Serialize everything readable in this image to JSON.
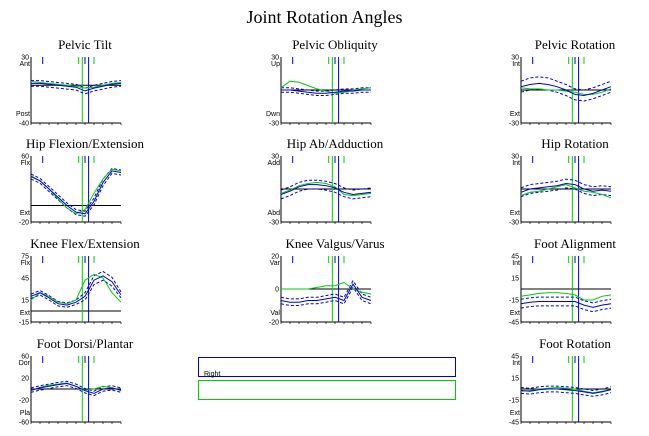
{
  "title": "Joint Rotation Angles",
  "legend": {
    "right_label": "Right",
    "right_color": "#0000cc",
    "left_color": "#00cc00"
  },
  "colors": {
    "right": "#0000cc",
    "left": "#00cc00",
    "axis": "#000000"
  },
  "chart_data": [
    {
      "type": "line",
      "title": "Pelvic Tilt",
      "y_ticks": [
        "30",
        "-40"
      ],
      "ylim": [
        -40,
        30
      ],
      "upper_label": "Ant",
      "lower_label": "Post",
      "zero_line": 0,
      "x": [
        0,
        10,
        20,
        30,
        40,
        50,
        60,
        70,
        80,
        90,
        100
      ],
      "right": [
        2,
        2,
        1,
        0,
        -1,
        -2,
        -6,
        -3,
        -1,
        1,
        2
      ],
      "right_band_hi": [
        5,
        5,
        4,
        3,
        2,
        1,
        -3,
        0,
        2,
        4,
        5
      ],
      "right_band_lo": [
        -1,
        -1,
        -2,
        -3,
        -4,
        -5,
        -9,
        -6,
        -4,
        -2,
        -1
      ],
      "left": [
        4,
        3,
        2,
        1,
        0,
        -1,
        -3,
        -2,
        0,
        2,
        3
      ],
      "right_event_x": [
        13,
        60
      ],
      "left_event_x": [
        53,
        70
      ],
      "toe_off_right": 64,
      "toe_off_left": 57
    },
    {
      "type": "line",
      "title": "Pelvic Obliquity",
      "y_ticks": [
        "30",
        "-30"
      ],
      "ylim": [
        -30,
        30
      ],
      "upper_label": "Up",
      "lower_label": "Dwn",
      "zero_line": 0,
      "x": [
        0,
        10,
        20,
        30,
        40,
        50,
        60,
        70,
        80,
        90,
        100
      ],
      "right": [
        0,
        0,
        -1,
        -2,
        -3,
        -3,
        -2,
        -1,
        -1,
        0,
        0
      ],
      "right_band_hi": [
        2,
        2,
        1,
        0,
        -1,
        -1,
        0,
        1,
        1,
        2,
        2
      ],
      "right_band_lo": [
        -2,
        -2,
        -3,
        -4,
        -5,
        -5,
        -4,
        -3,
        -3,
        -2,
        -2
      ],
      "left": [
        2,
        8,
        7,
        4,
        1,
        -1,
        -3,
        -2,
        0,
        1,
        2
      ],
      "right_event_x": [
        13,
        60
      ],
      "left_event_x": [
        53,
        70
      ],
      "toe_off_right": 64,
      "toe_off_left": 57
    },
    {
      "type": "line",
      "title": "Pelvic Rotation",
      "y_ticks": [
        "30",
        "-30"
      ],
      "ylim": [
        -30,
        30
      ],
      "upper_label": "Int",
      "lower_label": "Ext",
      "zero_line": 0,
      "x": [
        0,
        10,
        20,
        30,
        40,
        50,
        60,
        70,
        80,
        90,
        100
      ],
      "right": [
        3,
        5,
        6,
        5,
        3,
        0,
        -4,
        -5,
        -3,
        0,
        3
      ],
      "right_band_hi": [
        8,
        11,
        12,
        11,
        8,
        5,
        1,
        0,
        2,
        5,
        8
      ],
      "right_band_lo": [
        -2,
        0,
        1,
        0,
        -2,
        -5,
        -9,
        -10,
        -8,
        -5,
        -2
      ],
      "left": [
        2,
        1,
        1,
        0,
        0,
        -1,
        -2,
        -4,
        -4,
        -2,
        1
      ],
      "right_event_x": [
        13,
        60
      ],
      "left_event_x": [
        53,
        70
      ],
      "toe_off_right": 64,
      "toe_off_left": 57
    },
    {
      "type": "line",
      "title": "Hip Flexion/Extension",
      "y_ticks": [
        "60",
        "-20"
      ],
      "ylim": [
        -20,
        60
      ],
      "upper_label": "Flx",
      "lower_label": "Ext",
      "zero_line": 0,
      "x": [
        0,
        10,
        20,
        30,
        40,
        50,
        60,
        70,
        80,
        90,
        100
      ],
      "right": [
        35,
        30,
        20,
        10,
        0,
        -8,
        -10,
        5,
        28,
        42,
        40
      ],
      "right_band_hi": [
        38,
        33,
        23,
        13,
        3,
        -5,
        -7,
        9,
        32,
        45,
        43
      ],
      "right_band_lo": [
        32,
        27,
        17,
        7,
        -3,
        -11,
        -13,
        1,
        24,
        39,
        37
      ],
      "left": [
        36,
        30,
        20,
        8,
        -3,
        -10,
        -5,
        15,
        32,
        44,
        42
      ],
      "right_event_x": [
        13,
        60
      ],
      "left_event_x": [
        53,
        70
      ],
      "toe_off_right": 64,
      "toe_off_left": 57
    },
    {
      "type": "line",
      "title": "Hip Ab/Adduction",
      "y_ticks": [
        "30",
        "-30"
      ],
      "ylim": [
        -30,
        30
      ],
      "upper_label": "Add",
      "lower_label": "Abd",
      "zero_line": 0,
      "x": [
        0,
        10,
        20,
        30,
        40,
        50,
        60,
        70,
        80,
        90,
        100
      ],
      "right": [
        -5,
        -2,
        2,
        4,
        4,
        3,
        1,
        -3,
        -5,
        -4,
        -3
      ],
      "right_band_hi": [
        -1,
        2,
        6,
        8,
        8,
        7,
        5,
        1,
        -1,
        0,
        1
      ],
      "right_band_lo": [
        -9,
        -6,
        -2,
        0,
        0,
        -1,
        -3,
        -7,
        -9,
        -8,
        -7
      ],
      "left": [
        -4,
        -1,
        3,
        5,
        6,
        5,
        2,
        -5,
        -6,
        -5,
        -4
      ],
      "right_event_x": [
        13,
        60
      ],
      "left_event_x": [
        53,
        70
      ],
      "toe_off_right": 64,
      "toe_off_left": 57
    },
    {
      "type": "line",
      "title": "Hip Rotation",
      "y_ticks": [
        "30",
        "-30"
      ],
      "ylim": [
        -30,
        30
      ],
      "upper_label": "Int",
      "lower_label": "Ext",
      "zero_line": 0,
      "x": [
        0,
        10,
        20,
        30,
        40,
        50,
        60,
        70,
        80,
        90,
        100
      ],
      "right": [
        -3,
        0,
        1,
        2,
        3,
        5,
        4,
        0,
        -2,
        -1,
        -2
      ],
      "right_band_hi": [
        1,
        4,
        5,
        6,
        7,
        9,
        8,
        4,
        2,
        3,
        2
      ],
      "right_band_lo": [
        -7,
        -4,
        -3,
        -2,
        -1,
        1,
        0,
        -4,
        -6,
        -5,
        -6
      ],
      "left": [
        -6,
        -3,
        -2,
        0,
        2,
        4,
        1,
        -2,
        -3,
        -5,
        -8
      ],
      "right_event_x": [
        13,
        60
      ],
      "left_event_x": [
        53,
        70
      ],
      "toe_off_right": 64,
      "toe_off_left": 57
    },
    {
      "type": "line",
      "title": "Knee Flex/Extension",
      "y_ticks": [
        "75",
        "45",
        "15",
        "-15"
      ],
      "ylim": [
        -15,
        75
      ],
      "upper_label": "Flx",
      "lower_label": "Ext",
      "zero_line": 0,
      "x": [
        0,
        10,
        20,
        30,
        40,
        50,
        60,
        70,
        80,
        90,
        100
      ],
      "right": [
        20,
        25,
        18,
        10,
        8,
        12,
        20,
        42,
        48,
        40,
        22
      ],
      "right_band_hi": [
        23,
        28,
        21,
        13,
        11,
        15,
        25,
        48,
        54,
        46,
        26
      ],
      "right_band_lo": [
        17,
        22,
        15,
        7,
        5,
        9,
        15,
        36,
        42,
        34,
        18
      ],
      "left": [
        15,
        25,
        20,
        12,
        10,
        15,
        42,
        50,
        45,
        25,
        12
      ],
      "right_event_x": [
        13,
        60
      ],
      "left_event_x": [
        53,
        70
      ],
      "toe_off_right": 64,
      "toe_off_left": 57
    },
    {
      "type": "line",
      "title": "Knee Valgus/Varus",
      "y_ticks": [
        "20",
        "0",
        "-20"
      ],
      "ylim": [
        -20,
        20
      ],
      "upper_label": "Var",
      "lower_label": "Val",
      "zero_line": 0,
      "x": [
        0,
        10,
        20,
        30,
        40,
        50,
        60,
        70,
        80,
        90,
        100
      ],
      "right": [
        -7,
        -8,
        -8,
        -7,
        -7,
        -6,
        -5,
        -7,
        3,
        -5,
        -7
      ],
      "right_band_hi": [
        -5,
        -6,
        -6,
        -5,
        -5,
        -4,
        -3,
        -5,
        5,
        -3,
        -5
      ],
      "right_band_lo": [
        -9,
        -10,
        -10,
        -9,
        -9,
        -8,
        -7,
        -9,
        1,
        -7,
        -9
      ],
      "left": [
        0,
        0,
        0,
        0,
        1,
        2,
        2,
        4,
        0,
        -2,
        -3
      ],
      "right_event_x": [
        13,
        60
      ],
      "left_event_x": [
        53,
        70
      ],
      "toe_off_right": 64,
      "toe_off_left": 57
    },
    {
      "type": "line",
      "title": "Foot Alignment",
      "y_ticks": [
        "45",
        "15",
        "-15",
        "-45"
      ],
      "ylim": [
        -45,
        45
      ],
      "upper_label": "Int",
      "lower_label": "Ext",
      "zero_line": 0,
      "x": [
        0,
        10,
        20,
        30,
        40,
        50,
        60,
        70,
        80,
        90,
        100
      ],
      "right": [
        -20,
        -18,
        -17,
        -17,
        -17,
        -17,
        -17,
        -22,
        -25,
        -22,
        -20
      ],
      "right_band_hi": [
        -14,
        -12,
        -11,
        -11,
        -11,
        -11,
        -11,
        -16,
        -19,
        -16,
        -14
      ],
      "right_band_lo": [
        -26,
        -24,
        -23,
        -23,
        -23,
        -23,
        -23,
        -28,
        -31,
        -28,
        -26
      ],
      "left": [
        -10,
        -8,
        -6,
        -5,
        -5,
        -6,
        -8,
        -15,
        -15,
        -10,
        -8
      ],
      "right_event_x": [
        13,
        60
      ],
      "left_event_x": [
        53,
        70
      ],
      "toe_off_right": 64,
      "toe_off_left": 57
    },
    {
      "type": "line",
      "title": "Foot Dorsi/Plantar",
      "y_ticks": [
        "60",
        "20",
        "-20",
        "-60"
      ],
      "ylim": [
        -60,
        60
      ],
      "upper_label": "Dor",
      "lower_label": "Plа",
      "zero_line": 0,
      "x": [
        0,
        10,
        20,
        30,
        40,
        50,
        60,
        70,
        80,
        90,
        100
      ],
      "right": [
        -2,
        2,
        5,
        8,
        10,
        5,
        -3,
        -8,
        0,
        2,
        -2
      ],
      "right_band_hi": [
        2,
        6,
        9,
        12,
        14,
        9,
        1,
        -4,
        4,
        6,
        2
      ],
      "right_band_lo": [
        -6,
        -2,
        1,
        4,
        6,
        1,
        -7,
        -12,
        -4,
        -2,
        -6
      ],
      "left": [
        -3,
        3,
        7,
        9,
        11,
        5,
        -2,
        0,
        5,
        2,
        -3
      ],
      "right_event_x": [
        13,
        60
      ],
      "left_event_x": [
        53,
        70
      ],
      "toe_off_right": 64,
      "toe_off_left": 57
    },
    {
      "type": "line",
      "title": "Foot Rotation",
      "y_ticks": [
        "45",
        "15",
        "-15",
        "-45"
      ],
      "ylim": [
        -45,
        45
      ],
      "upper_label": "Int",
      "lower_label": "Ext",
      "zero_line": 0,
      "x": [
        0,
        10,
        20,
        30,
        40,
        50,
        60,
        70,
        80,
        90,
        100
      ],
      "right": [
        -2,
        -3,
        -1,
        0,
        0,
        -1,
        -2,
        -4,
        -6,
        -4,
        -1
      ],
      "right_band_hi": [
        2,
        1,
        3,
        4,
        4,
        3,
        2,
        0,
        -2,
        0,
        3
      ],
      "right_band_lo": [
        -6,
        -7,
        -5,
        -4,
        -4,
        -5,
        -6,
        -8,
        -10,
        -8,
        -5
      ],
      "left": [
        -3,
        -2,
        0,
        1,
        2,
        1,
        0,
        -3,
        -5,
        -3,
        -1
      ],
      "right_event_x": [
        13,
        60
      ],
      "left_event_x": [
        53,
        70
      ],
      "toe_off_right": 64,
      "toe_off_left": 57
    }
  ]
}
